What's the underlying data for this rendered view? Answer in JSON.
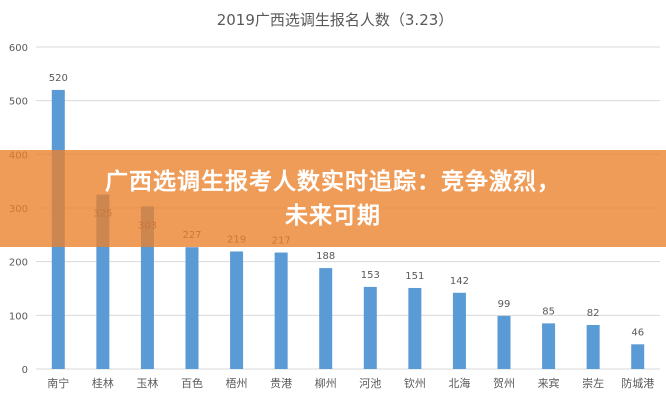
{
  "chart_data": {
    "type": "bar",
    "title": "2019广西选调生报名人数（3.23）",
    "categories": [
      "南宁",
      "桂林",
      "玉林",
      "百色",
      "梧州",
      "贵港",
      "柳州",
      "河池",
      "钦州",
      "北海",
      "贺州",
      "来宾",
      "崇左",
      "防城港"
    ],
    "values": [
      520,
      325,
      303,
      227,
      219,
      217,
      188,
      153,
      151,
      142,
      99,
      85,
      82,
      46
    ],
    "ylim": [
      0,
      600
    ],
    "yticks": [
      0,
      100,
      200,
      300,
      400,
      500,
      600
    ],
    "grid": true,
    "legend": "none",
    "bar_color": "#5b9bd5",
    "label_color": "#595959"
  },
  "banner": {
    "text": "广西选调生报考人数实时追踪：竞争激烈，未来可期",
    "color": "#ec802a"
  }
}
